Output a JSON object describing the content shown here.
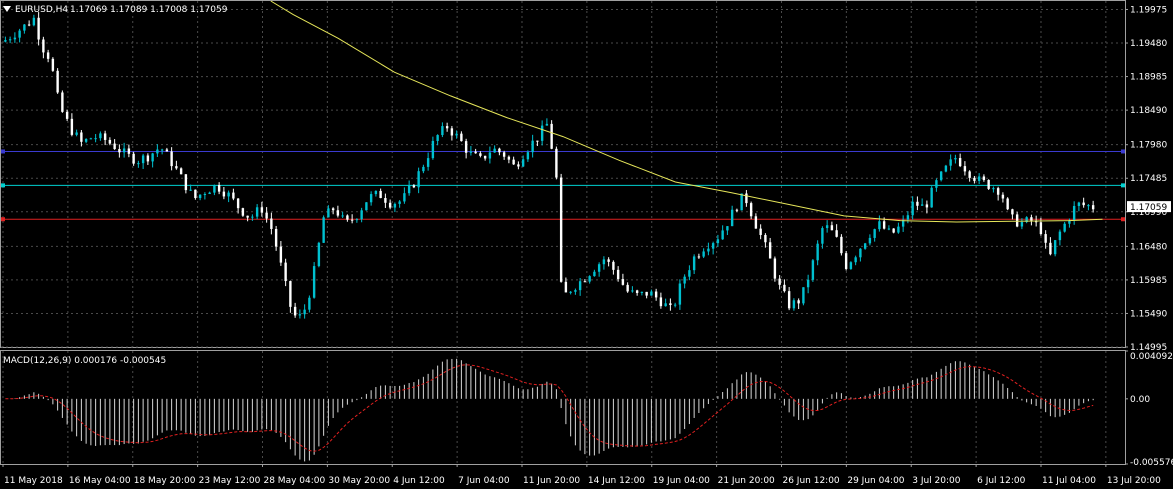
{
  "header": {
    "symbol": "EURUSD,H4",
    "ohlc": "1.17069 1.17089 1.17008 1.17059",
    "macd_label": "MACD(12,26,9) 0.000176 -0.000545"
  },
  "colors": {
    "background": "#000000",
    "grid": "#4a4a4a",
    "bull_candle": "#00c0d0",
    "bear_candle": "#ffffff",
    "moving_average": "#e6e65a",
    "level_blue": "#3a3ad0",
    "level_cyan": "#00d0d0",
    "level_red": "#e02020",
    "macd_hist": "#d8d8d8",
    "macd_signal": "#e02020",
    "price_tag": "#ffffff"
  },
  "chart_data": {
    "type": "candlestick",
    "symbol": "EURUSD",
    "timeframe": "H4",
    "price_axis": {
      "ticks": [
        "1.19975",
        "1.19480",
        "1.18985",
        "1.18490",
        "1.17980",
        "1.17485",
        "1.16990",
        "1.16480",
        "1.15985",
        "1.15490",
        "1.14995"
      ],
      "ylim": [
        1.14995,
        1.201
      ]
    },
    "current_price": "1.17059",
    "levels": [
      {
        "price": 1.1788,
        "color": "level_blue"
      },
      {
        "price": 1.1738,
        "color": "level_cyan"
      },
      {
        "price": 1.1688,
        "color": "level_red"
      }
    ],
    "moving_average": [
      [
        0.24,
        1.201
      ],
      [
        0.26,
        1.199
      ],
      [
        0.3,
        1.1955
      ],
      [
        0.35,
        1.1905
      ],
      [
        0.4,
        1.187
      ],
      [
        0.45,
        1.1838
      ],
      [
        0.5,
        1.181
      ],
      [
        0.55,
        1.1775
      ],
      [
        0.6,
        1.1743
      ],
      [
        0.65,
        1.1727
      ],
      [
        0.7,
        1.171
      ],
      [
        0.75,
        1.1693
      ],
      [
        0.8,
        1.1686
      ],
      [
        0.85,
        1.1684
      ],
      [
        0.9,
        1.1685
      ],
      [
        0.95,
        1.1686
      ],
      [
        0.98,
        1.1688
      ]
    ],
    "price_path": [
      [
        0.0,
        1.195
      ],
      [
        0.01,
        1.1962
      ],
      [
        0.02,
        1.1974
      ],
      [
        0.028,
        1.1985
      ],
      [
        0.034,
        1.1945
      ],
      [
        0.042,
        1.1925
      ],
      [
        0.05,
        1.1855
      ],
      [
        0.06,
        1.1822
      ],
      [
        0.07,
        1.18
      ],
      [
        0.08,
        1.181
      ],
      [
        0.09,
        1.1806
      ],
      [
        0.1,
        1.1795
      ],
      [
        0.11,
        1.1782
      ],
      [
        0.12,
        1.1775
      ],
      [
        0.13,
        1.1782
      ],
      [
        0.14,
        1.1795
      ],
      [
        0.15,
        1.1772
      ],
      [
        0.16,
        1.1745
      ],
      [
        0.17,
        1.1718
      ],
      [
        0.18,
        1.173
      ],
      [
        0.19,
        1.1738
      ],
      [
        0.2,
        1.1725
      ],
      [
        0.21,
        1.1705
      ],
      [
        0.22,
        1.169
      ],
      [
        0.23,
        1.1705
      ],
      [
        0.24,
        1.167
      ],
      [
        0.25,
        1.16
      ],
      [
        0.255,
        1.1562
      ],
      [
        0.262,
        1.1538
      ],
      [
        0.27,
        1.156
      ],
      [
        0.278,
        1.162
      ],
      [
        0.285,
        1.169
      ],
      [
        0.295,
        1.1705
      ],
      [
        0.305,
        1.168
      ],
      [
        0.315,
        1.1695
      ],
      [
        0.325,
        1.172
      ],
      [
        0.335,
        1.1725
      ],
      [
        0.345,
        1.1712
      ],
      [
        0.355,
        1.1715
      ],
      [
        0.365,
        1.174
      ],
      [
        0.375,
        1.1772
      ],
      [
        0.385,
        1.1808
      ],
      [
        0.395,
        1.1825
      ],
      [
        0.405,
        1.1808
      ],
      [
        0.415,
        1.1785
      ],
      [
        0.425,
        1.1775
      ],
      [
        0.435,
        1.1792
      ],
      [
        0.445,
        1.1785
      ],
      [
        0.455,
        1.1765
      ],
      [
        0.465,
        1.179
      ],
      [
        0.475,
        1.1808
      ],
      [
        0.485,
        1.183
      ],
      [
        0.493,
        1.174
      ],
      [
        0.497,
        1.157
      ],
      [
        0.505,
        1.1585
      ],
      [
        0.515,
        1.1598
      ],
      [
        0.525,
        1.1615
      ],
      [
        0.535,
        1.163
      ],
      [
        0.545,
        1.161
      ],
      [
        0.555,
        1.1582
      ],
      [
        0.565,
        1.1575
      ],
      [
        0.575,
        1.158
      ],
      [
        0.585,
        1.1568
      ],
      [
        0.595,
        1.1552
      ],
      [
        0.605,
        1.16
      ],
      [
        0.615,
        1.1632
      ],
      [
        0.625,
        1.165
      ],
      [
        0.635,
        1.166
      ],
      [
        0.645,
        1.1685
      ],
      [
        0.655,
        1.1715
      ],
      [
        0.66,
        1.1722
      ],
      [
        0.67,
        1.168
      ],
      [
        0.68,
        1.164
      ],
      [
        0.69,
        1.159
      ],
      [
        0.7,
        1.156
      ],
      [
        0.71,
        1.157
      ],
      [
        0.72,
        1.162
      ],
      [
        0.73,
        1.168
      ],
      [
        0.74,
        1.1665
      ],
      [
        0.75,
        1.162
      ],
      [
        0.76,
        1.164
      ],
      [
        0.77,
        1.1665
      ],
      [
        0.78,
        1.168
      ],
      [
        0.79,
        1.1665
      ],
      [
        0.8,
        1.168
      ],
      [
        0.81,
        1.1712
      ],
      [
        0.82,
        1.1705
      ],
      [
        0.83,
        1.174
      ],
      [
        0.84,
        1.1765
      ],
      [
        0.848,
        1.178
      ],
      [
        0.858,
        1.176
      ],
      [
        0.868,
        1.1745
      ],
      [
        0.878,
        1.1738
      ],
      [
        0.888,
        1.173
      ],
      [
        0.895,
        1.169
      ],
      [
        0.905,
        1.1682
      ],
      [
        0.915,
        1.1686
      ],
      [
        0.925,
        1.167
      ],
      [
        0.93,
        1.1625
      ],
      [
        0.938,
        1.1662
      ],
      [
        0.948,
        1.169
      ],
      [
        0.955,
        1.171
      ],
      [
        0.965,
        1.1708
      ],
      [
        0.97,
        1.1706
      ]
    ],
    "macd": {
      "label": "MACD(12,26,9)",
      "main": "0.000176",
      "signal": "-0.000545",
      "axis_ticks": [
        "0.004092",
        "0.00",
        "-0.005576"
      ],
      "ylim": [
        -0.005576,
        0.004092
      ]
    },
    "x_axis_labels": [
      "11 May 2018",
      "16 May 04:00",
      "18 May 20:00",
      "23 May 12:00",
      "28 May 04:00",
      "30 May 20:00",
      "4 Jun 12:00",
      "7 Jun 04:00",
      "11 Jun 20:00",
      "14 Jun 12:00",
      "19 Jun 04:00",
      "21 Jun 20:00",
      "26 Jun 12:00",
      "29 Jun 04:00",
      "3 Jul 20:00",
      "6 Jul 12:00",
      "11 Jul 04:00",
      "13 Jul 20:00"
    ]
  }
}
